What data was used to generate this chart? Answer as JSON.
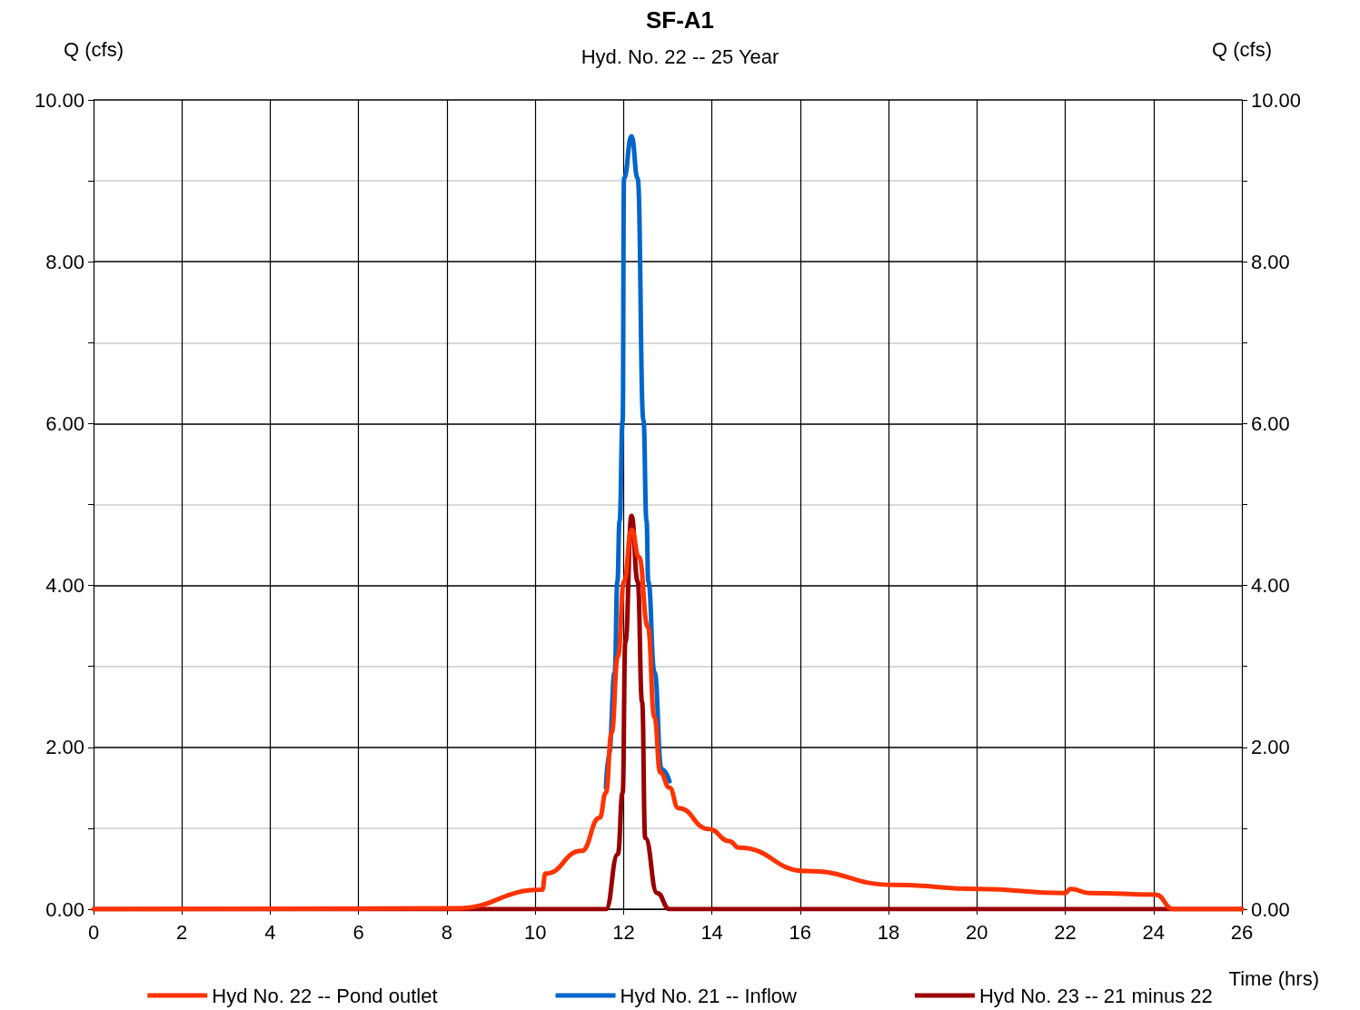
{
  "chart_data": {
    "type": "line",
    "title": "SF-A1",
    "subtitle": "Hyd. No. 22 -- 25 Year",
    "xlabel": "Time (hrs)",
    "ylabel": "Q (cfs)",
    "y2label": "Q (cfs)",
    "xlim": [
      0,
      26
    ],
    "xticks": [
      0,
      2,
      4,
      6,
      8,
      10,
      12,
      14,
      16,
      18,
      20,
      22,
      24,
      26
    ],
    "ylim": [
      0,
      10
    ],
    "yticks": [
      {
        "value": 0,
        "label": "0.00"
      },
      {
        "value": 1,
        "label": null
      },
      {
        "value": 2,
        "label": "2.00"
      },
      {
        "value": 3,
        "label": null
      },
      {
        "value": 4,
        "label": "4.00"
      },
      {
        "value": 5,
        "label": null
      },
      {
        "value": 6,
        "label": "6.00"
      },
      {
        "value": 7,
        "label": null
      },
      {
        "value": 8,
        "label": "8.00"
      },
      {
        "value": 9,
        "label": null
      },
      {
        "value": 10,
        "label": "10.00"
      }
    ],
    "y2lim": [
      0,
      10
    ],
    "y2ticks": [
      {
        "value": 0,
        "label": "0.00"
      },
      {
        "value": 1,
        "label": null
      },
      {
        "value": 2,
        "label": "2.00"
      },
      {
        "value": 3,
        "label": null
      },
      {
        "value": 4,
        "label": "4.00"
      },
      {
        "value": 5,
        "label": null
      },
      {
        "value": 6,
        "label": "6.00"
      },
      {
        "value": 7,
        "label": null
      },
      {
        "value": 8,
        "label": "8.00"
      },
      {
        "value": 9,
        "label": null
      },
      {
        "value": 10,
        "label": "10.00"
      }
    ],
    "grid": true,
    "legend": "bottom",
    "marker": "none",
    "line_style": "solid",
    "series": [
      {
        "name": "Hyd No. 22 -- Pond outlet",
        "color": "#ff3300",
        "x": [
          0,
          8.17,
          10.16,
          10.23,
          11.05,
          11.46,
          11.6,
          11.73,
          11.87,
          12.01,
          12.18,
          12.35,
          12.55,
          12.7,
          12.83,
          13.04,
          13.24,
          13.93,
          14.4,
          14.61,
          16.15,
          18.12,
          20.02,
          22.0,
          22.12,
          22.55,
          24.05,
          24.45,
          26
        ],
        "values": [
          0,
          0.01,
          0.24,
          0.44,
          0.72,
          1.13,
          1.44,
          2.18,
          3.12,
          4.05,
          4.69,
          4.35,
          3.49,
          2.37,
          1.69,
          1.5,
          1.25,
          0.99,
          0.84,
          0.76,
          0.47,
          0.3,
          0.25,
          0.2,
          0.25,
          0.2,
          0.18,
          0,
          0
        ]
      },
      {
        "name": "Hyd No. 21 -- Inflow",
        "color": "#0066cc",
        "x": [
          11.6,
          11.67,
          11.8,
          11.86,
          11.91,
          11.98,
          12.01,
          12.18,
          12.32,
          12.45,
          12.52,
          12.56,
          12.7,
          12.86,
          13.04
        ],
        "values": [
          1.5,
          1.92,
          2.93,
          4.05,
          4.8,
          6.04,
          9.03,
          9.55,
          9.03,
          6.04,
          4.8,
          4.05,
          2.93,
          1.73,
          1.58
        ]
      },
      {
        "name": "Hyd No. 23 -- 21 minus 22",
        "color": "#990000",
        "x": [
          0,
          11.6,
          11.87,
          11.98,
          12.04,
          12.18,
          12.32,
          12.42,
          12.49,
          12.76,
          13.04,
          26
        ],
        "values": [
          0,
          0,
          0.68,
          1.44,
          3.3,
          4.86,
          4.05,
          2.56,
          0.88,
          0.2,
          0,
          0
        ]
      }
    ]
  }
}
